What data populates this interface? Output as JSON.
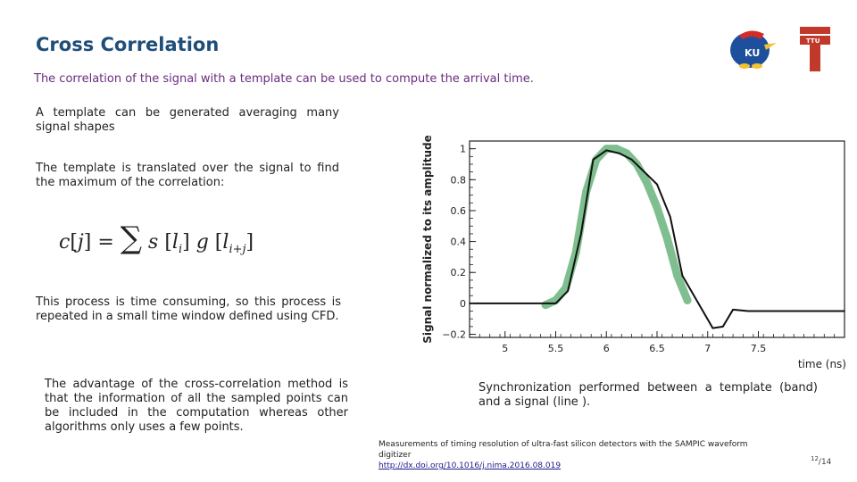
{
  "slide": {
    "title": "Cross Correlation",
    "subtitle": "The correlation of the signal with a template can be used to compute the arrival time.",
    "para1": "A template can be generated averaging many signal shapes",
    "para2": "The template is translated over the signal to find the maximum of the correlation:",
    "formula": "c[j] = Σ s[l_i] g[l_{i+j}]",
    "para3": "This process is time consuming, so this process is repeated in a small time window defined using CFD.",
    "para4": "The advantage of the cross-correlation method is that the information of all the sampled points can be included in the computation whereas other algorithms only uses a few points.",
    "para5": "Synchronization performed between a template (band) and a signal (line ).",
    "reference": "Measurements of timing resolution of ultra-fast silicon detectors with the SAMPIC waveform digitizer",
    "reference_link": "http://dx.doi.org/10.1016/j.nima.2016.08.019",
    "page_current": "12",
    "page_total": "/14"
  },
  "logos": {
    "ku_text": "KU",
    "tt_text": "TTU"
  },
  "chart_data": {
    "type": "line",
    "xlabel": "time (ns)",
    "ylabel": "Signal normalized to its amplitude",
    "xlim": [
      4.65,
      8.35
    ],
    "ylim": [
      -0.22,
      1.05
    ],
    "xticks": [
      "5",
      "5.5",
      "6",
      "6.5",
      "7",
      "7.5"
    ],
    "xtick_values": [
      5,
      5.5,
      6,
      6.5,
      7,
      7.5
    ],
    "yticks": [
      "−0.2",
      "0",
      "0.2",
      "0.4",
      "0.6",
      "0.8",
      "1"
    ],
    "ytick_values": [
      -0.2,
      0,
      0.2,
      0.4,
      0.6,
      0.8,
      1
    ],
    "grid": false,
    "series": [
      {
        "kind": "band",
        "color": "#7fbf8f",
        "x": [
          5.4,
          5.5,
          5.6,
          5.7,
          5.8,
          5.9,
          6.0,
          6.1,
          6.2,
          6.3,
          6.4,
          6.5,
          6.6,
          6.7,
          6.8
        ],
        "y": [
          -0.01,
          0.02,
          0.1,
          0.33,
          0.72,
          0.93,
          1.0,
          1.0,
          0.97,
          0.9,
          0.78,
          0.62,
          0.42,
          0.18,
          0.02
        ]
      },
      {
        "kind": "line",
        "color": "#111111",
        "x": [
          4.65,
          5.05,
          5.5,
          5.62,
          5.75,
          5.87,
          6.0,
          6.13,
          6.25,
          6.5,
          6.63,
          6.75,
          7.05,
          7.15,
          7.25,
          7.4,
          7.6,
          8.0,
          8.35
        ],
        "y": [
          0.0,
          0.0,
          0.0,
          0.08,
          0.45,
          0.93,
          0.99,
          0.97,
          0.93,
          0.77,
          0.56,
          0.18,
          -0.16,
          -0.15,
          -0.04,
          -0.05,
          -0.05,
          -0.05,
          -0.05
        ]
      }
    ]
  }
}
